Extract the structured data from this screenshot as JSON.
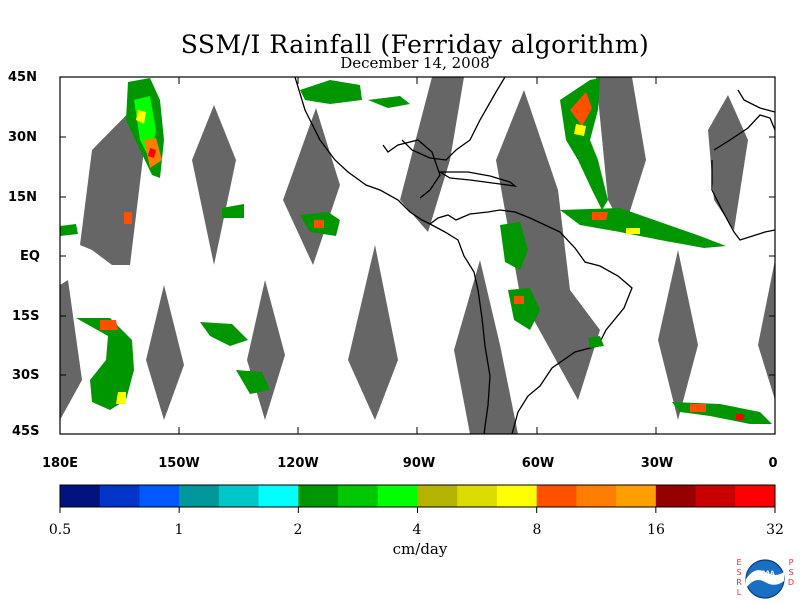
{
  "title": "SSM/I Rainfall (Ferriday algorithm)",
  "subtitle": "December 14, 2008",
  "lat_labels": [
    "45N",
    "30N",
    "15N",
    "EQ",
    "15S",
    "30S",
    "45S"
  ],
  "lon_labels": [
    "180E",
    "150W",
    "120W",
    "90W",
    "60W",
    "30W",
    "0"
  ],
  "colorbar": {
    "colors": [
      "#00137f",
      "#0035c8",
      "#0058ff",
      "#00989a",
      "#00c8c8",
      "#00ffff",
      "#009600",
      "#00c800",
      "#00ff00",
      "#b4b400",
      "#dcdc00",
      "#ffff00",
      "#ff5000",
      "#ff7d00",
      "#ffa000",
      "#960000",
      "#c80000",
      "#ff0000"
    ],
    "tick_labels": [
      "0.5",
      "1",
      "2",
      "4",
      "8",
      "16",
      "32"
    ],
    "units": "cm/day"
  },
  "logo": {
    "name": "NOAA",
    "left_text": "ESRL",
    "right_text": "PSD"
  }
}
